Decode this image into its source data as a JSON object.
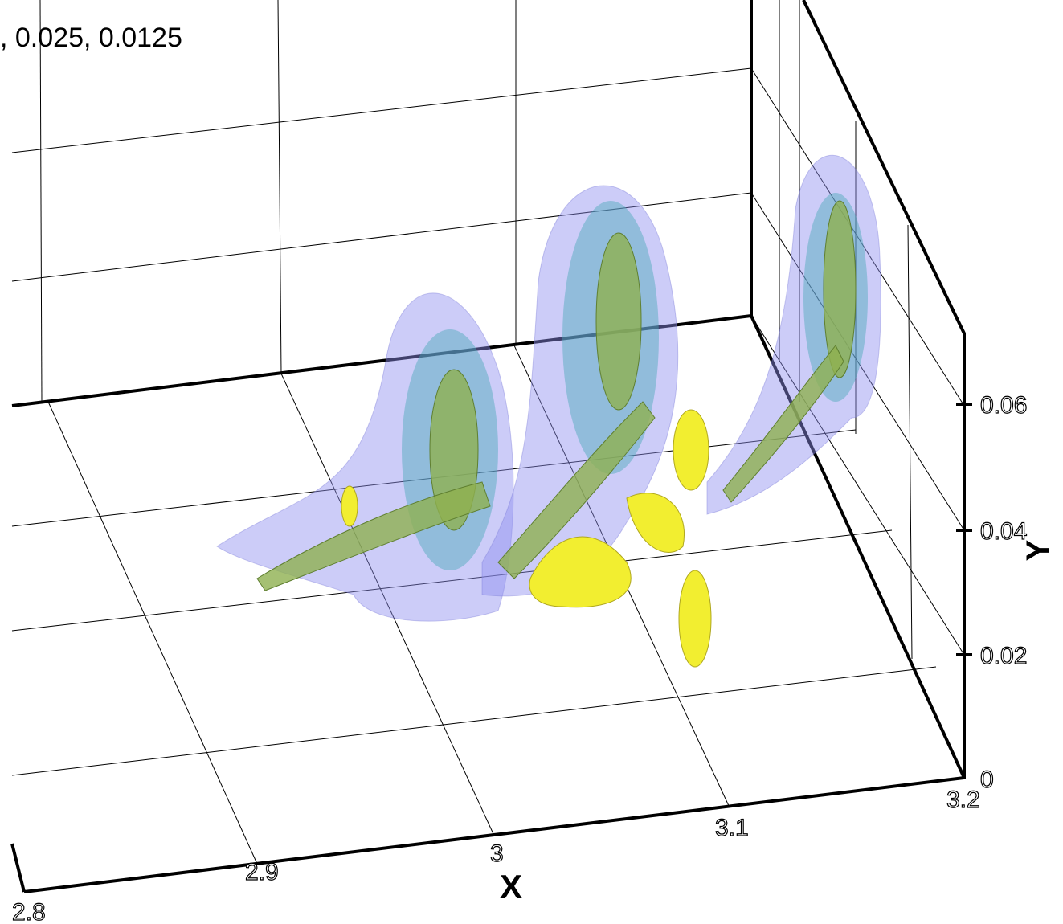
{
  "annotation": ", 0.025, 0.0125",
  "x_axis": {
    "title": "X",
    "ticks": [
      "2.8",
      "2.9",
      "3",
      "3.1",
      "3.2"
    ]
  },
  "y_axis": {
    "title": "Y",
    "ticks": [
      "0",
      "0.02",
      "0.04",
      "0.06"
    ]
  }
}
